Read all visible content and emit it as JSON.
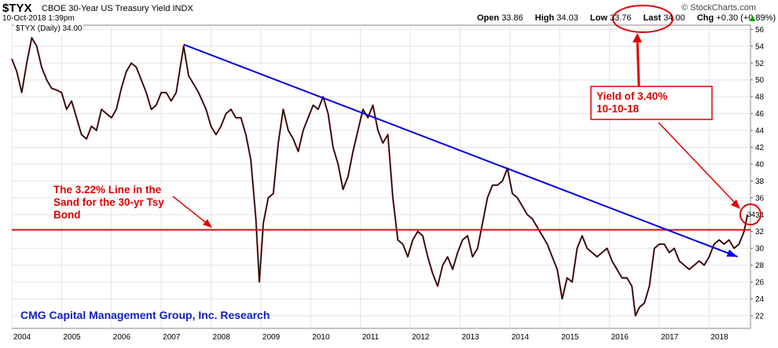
{
  "header": {
    "symbol": "$TYX",
    "description": "CBOE 30-Year US Treasury Yield INDX",
    "datetime": "10-Oct-2018 1:39pm",
    "watermark": "© StockCharts.com",
    "open_label": "Open",
    "open_value": "33.86",
    "high_label": "High",
    "high_value": "34.03",
    "low_label": "Low",
    "low_value": "33.76",
    "last_label": "Last",
    "last_value": "34.00",
    "chg_label": "Chg",
    "chg_value": "+0.30 (+0.89%)",
    "legend": "$TYX (Daily) 34.00"
  },
  "colors": {
    "price": "#000000",
    "price_down": "#c00000",
    "trendline": "#0000e0",
    "support": "#e00000",
    "annotation": "#e00000",
    "footer": "#1020c0",
    "grid": "#e4e4e4",
    "up_arrow": "#00a000"
  },
  "chart_data": {
    "type": "line",
    "title": "$TYX CBOE 30-Year US Treasury Yield INDX",
    "ylabel": "",
    "xlabel": "",
    "xlim": [
      2004.0,
      2018.83
    ],
    "ylim": [
      20.5,
      56.5
    ],
    "yticks": [
      "22",
      "24",
      "26",
      "28",
      "30",
      "32",
      "34",
      "36",
      "38",
      "40",
      "42",
      "44",
      "46",
      "48",
      "50",
      "52",
      "54",
      "56"
    ],
    "xticks": [
      {
        "label": "2004",
        "x": 2004.0
      },
      {
        "label": "2005",
        "x": 2005.0
      },
      {
        "label": "2006",
        "x": 2006.0
      },
      {
        "label": "2007",
        "x": 2007.0
      },
      {
        "label": "2008",
        "x": 2008.0
      },
      {
        "label": "2009",
        "x": 2009.0
      },
      {
        "label": "2010",
        "x": 2010.0
      },
      {
        "label": "2011",
        "x": 2011.0
      },
      {
        "label": "2012",
        "x": 2012.0
      },
      {
        "label": "2013",
        "x": 2013.0
      },
      {
        "label": "2014",
        "x": 2014.0
      },
      {
        "label": "2015",
        "x": 2015.0
      },
      {
        "label": "2016",
        "x": 2016.0
      },
      {
        "label": "2017",
        "x": 2017.0
      },
      {
        "label": "2018",
        "x": 2018.0
      }
    ],
    "grid": true,
    "series": [
      {
        "values": [
          [
            2004.0,
            52.5
          ],
          [
            2004.1,
            51.0
          ],
          [
            2004.2,
            48.5
          ],
          [
            2004.3,
            52.0
          ],
          [
            2004.4,
            55.0
          ],
          [
            2004.5,
            54.0
          ],
          [
            2004.6,
            51.5
          ],
          [
            2004.7,
            50.0
          ],
          [
            2004.8,
            49.0
          ],
          [
            2004.9,
            48.8
          ],
          [
            2005.0,
            48.5
          ],
          [
            2005.1,
            46.5
          ],
          [
            2005.2,
            47.5
          ],
          [
            2005.3,
            45.5
          ],
          [
            2005.4,
            43.5
          ],
          [
            2005.5,
            43.0
          ],
          [
            2005.6,
            44.5
          ],
          [
            2005.7,
            44.0
          ],
          [
            2005.8,
            46.5
          ],
          [
            2005.9,
            46.0
          ],
          [
            2006.0,
            45.5
          ],
          [
            2006.1,
            46.5
          ],
          [
            2006.2,
            49.0
          ],
          [
            2006.3,
            51.0
          ],
          [
            2006.4,
            52.0
          ],
          [
            2006.5,
            51.5
          ],
          [
            2006.6,
            50.0
          ],
          [
            2006.7,
            48.5
          ],
          [
            2006.8,
            46.5
          ],
          [
            2006.9,
            47.0
          ],
          [
            2007.0,
            48.5
          ],
          [
            2007.1,
            48.5
          ],
          [
            2007.2,
            47.5
          ],
          [
            2007.3,
            48.5
          ],
          [
            2007.45,
            54.0
          ],
          [
            2007.55,
            50.5
          ],
          [
            2007.65,
            49.5
          ],
          [
            2007.75,
            48.5
          ],
          [
            2007.9,
            46.5
          ],
          [
            2008.0,
            44.5
          ],
          [
            2008.1,
            43.5
          ],
          [
            2008.2,
            44.5
          ],
          [
            2008.3,
            46.0
          ],
          [
            2008.4,
            46.5
          ],
          [
            2008.5,
            45.5
          ],
          [
            2008.6,
            45.5
          ],
          [
            2008.7,
            43.5
          ],
          [
            2008.8,
            40.5
          ],
          [
            2008.9,
            33.5
          ],
          [
            2008.97,
            26.0
          ],
          [
            2009.05,
            33.0
          ],
          [
            2009.15,
            36.0
          ],
          [
            2009.25,
            36.5
          ],
          [
            2009.35,
            42.5
          ],
          [
            2009.45,
            46.5
          ],
          [
            2009.55,
            44.0
          ],
          [
            2009.65,
            43.0
          ],
          [
            2009.75,
            41.5
          ],
          [
            2009.85,
            44.0
          ],
          [
            2009.95,
            45.5
          ],
          [
            2010.05,
            47.0
          ],
          [
            2010.15,
            46.5
          ],
          [
            2010.25,
            48.0
          ],
          [
            2010.35,
            46.0
          ],
          [
            2010.45,
            42.0
          ],
          [
            2010.55,
            40.0
          ],
          [
            2010.65,
            37.0
          ],
          [
            2010.75,
            38.5
          ],
          [
            2010.85,
            41.5
          ],
          [
            2010.95,
            44.0
          ],
          [
            2011.05,
            46.5
          ],
          [
            2011.15,
            45.5
          ],
          [
            2011.25,
            47.0
          ],
          [
            2011.35,
            44.0
          ],
          [
            2011.45,
            42.5
          ],
          [
            2011.55,
            43.5
          ],
          [
            2011.65,
            36.0
          ],
          [
            2011.75,
            31.0
          ],
          [
            2011.85,
            30.5
          ],
          [
            2011.95,
            29.0
          ],
          [
            2012.05,
            31.0
          ],
          [
            2012.15,
            32.0
          ],
          [
            2012.25,
            31.5
          ],
          [
            2012.35,
            29.0
          ],
          [
            2012.45,
            27.0
          ],
          [
            2012.55,
            25.5
          ],
          [
            2012.65,
            28.0
          ],
          [
            2012.75,
            29.0
          ],
          [
            2012.85,
            27.5
          ],
          [
            2012.95,
            29.5
          ],
          [
            2013.05,
            31.0
          ],
          [
            2013.15,
            31.5
          ],
          [
            2013.25,
            29.0
          ],
          [
            2013.35,
            30.0
          ],
          [
            2013.45,
            33.0
          ],
          [
            2013.55,
            36.0
          ],
          [
            2013.65,
            37.5
          ],
          [
            2013.75,
            37.5
          ],
          [
            2013.85,
            38.0
          ],
          [
            2013.95,
            39.5
          ],
          [
            2014.05,
            36.5
          ],
          [
            2014.15,
            36.0
          ],
          [
            2014.25,
            35.0
          ],
          [
            2014.35,
            34.0
          ],
          [
            2014.45,
            33.5
          ],
          [
            2014.55,
            32.5
          ],
          [
            2014.65,
            31.5
          ],
          [
            2014.75,
            30.5
          ],
          [
            2014.85,
            29.0
          ],
          [
            2014.95,
            27.5
          ],
          [
            2015.05,
            24.0
          ],
          [
            2015.15,
            26.5
          ],
          [
            2015.25,
            26.0
          ],
          [
            2015.35,
            30.0
          ],
          [
            2015.45,
            31.5
          ],
          [
            2015.55,
            30.0
          ],
          [
            2015.65,
            29.5
          ],
          [
            2015.75,
            29.0
          ],
          [
            2015.85,
            29.5
          ],
          [
            2015.95,
            30.0
          ],
          [
            2016.05,
            28.5
          ],
          [
            2016.15,
            27.5
          ],
          [
            2016.25,
            26.5
          ],
          [
            2016.35,
            26.5
          ],
          [
            2016.45,
            25.5
          ],
          [
            2016.52,
            22.0
          ],
          [
            2016.6,
            23.0
          ],
          [
            2016.7,
            23.5
          ],
          [
            2016.8,
            25.5
          ],
          [
            2016.9,
            30.0
          ],
          [
            2017.0,
            30.5
          ],
          [
            2017.1,
            30.5
          ],
          [
            2017.2,
            29.5
          ],
          [
            2017.3,
            30.0
          ],
          [
            2017.4,
            28.5
          ],
          [
            2017.5,
            28.0
          ],
          [
            2017.6,
            27.5
          ],
          [
            2017.7,
            28.0
          ],
          [
            2017.8,
            28.5
          ],
          [
            2017.9,
            28.0
          ],
          [
            2018.0,
            29.0
          ],
          [
            2018.1,
            30.5
          ],
          [
            2018.2,
            31.0
          ],
          [
            2018.3,
            30.5
          ],
          [
            2018.4,
            31.0
          ],
          [
            2018.5,
            30.0
          ],
          [
            2018.6,
            30.5
          ],
          [
            2018.7,
            32.0
          ],
          [
            2018.77,
            34.0
          ]
        ]
      }
    ],
    "trendline": {
      "start": [
        2007.45,
        54.2
      ],
      "end": [
        2018.57,
        29.0
      ]
    },
    "support_line": {
      "y": 32.2
    },
    "annotations": [
      {
        "text_lines": [
          "The 3.22% Line in the",
          "Sand for the 30-yr Tsy",
          "Bond"
        ]
      },
      {
        "text_lines": [
          "Yield of 3.40%",
          "10-10-18"
        ]
      }
    ],
    "footer_text": "CMG Capital Management Group, Inc. Research",
    "last_marker_label": "34"
  }
}
